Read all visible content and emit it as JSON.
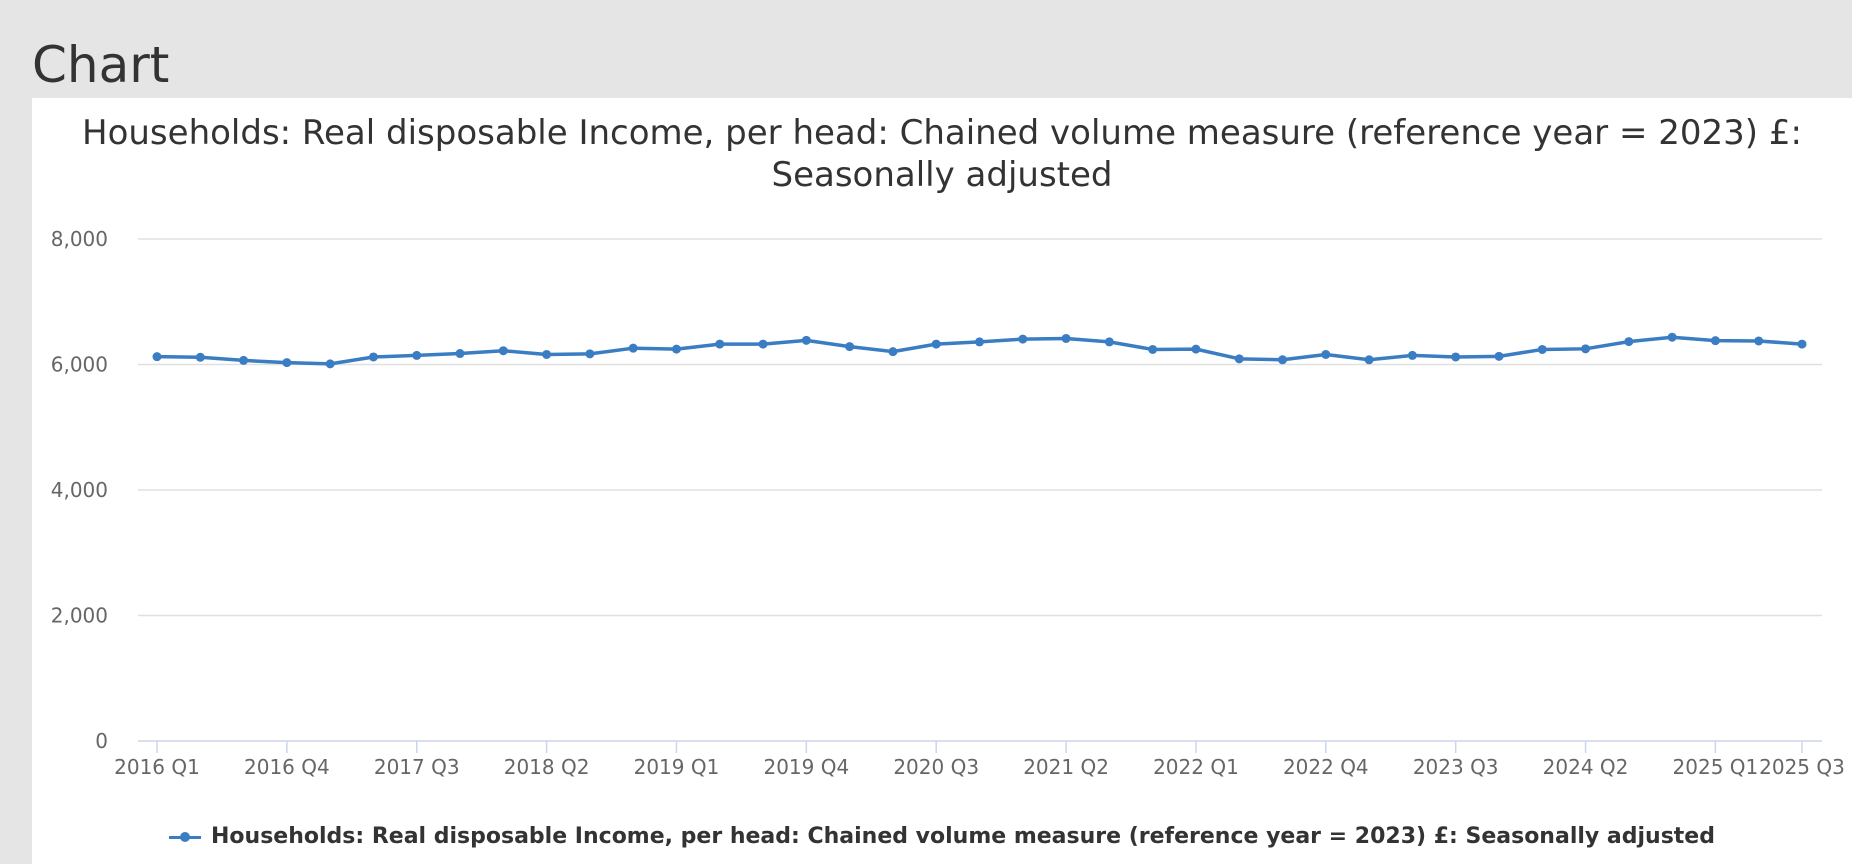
{
  "page": {
    "heading": "Chart"
  },
  "chart_data": {
    "type": "line",
    "title": "Households: Real disposable Income, per head: Chained volume measure (reference year = 2023) £: Seasonally adjusted",
    "xlabel": "",
    "ylabel": "",
    "ylim": [
      0,
      8000
    ],
    "yticks": [
      "0",
      "2,000",
      "4,000",
      "6,000",
      "8,000"
    ],
    "grid": true,
    "legend_position": "bottom",
    "x_tick_labels": [
      "2016 Q1",
      "2016 Q4",
      "2017 Q3",
      "2018 Q2",
      "2019 Q1",
      "2019 Q4",
      "2020 Q3",
      "2021 Q2",
      "2022 Q1",
      "2022 Q4",
      "2023 Q3",
      "2024 Q2",
      "2025 Q1",
      "2025 Q3"
    ],
    "categories": [
      "2016 Q1",
      "2016 Q2",
      "2016 Q3",
      "2016 Q4",
      "2017 Q1",
      "2017 Q2",
      "2017 Q3",
      "2017 Q4",
      "2018 Q1",
      "2018 Q2",
      "2018 Q3",
      "2018 Q4",
      "2019 Q1",
      "2019 Q2",
      "2019 Q3",
      "2019 Q4",
      "2020 Q1",
      "2020 Q2",
      "2020 Q3",
      "2020 Q4",
      "2021 Q1",
      "2021 Q2",
      "2021 Q3",
      "2021 Q4",
      "2022 Q1",
      "2022 Q2",
      "2022 Q3",
      "2022 Q4",
      "2023 Q1",
      "2023 Q2",
      "2023 Q3",
      "2023 Q4",
      "2024 Q1",
      "2024 Q2",
      "2024 Q3",
      "2024 Q4",
      "2025 Q1",
      "2025 Q2",
      "2025 Q3"
    ],
    "series": [
      {
        "name": "Households: Real disposable Income, per head: Chained volume measure (reference year = 2023) £: Seasonally adjusted",
        "color": "#3a7dc2",
        "values": [
          6125,
          6115,
          6065,
          6030,
          6010,
          6120,
          6145,
          6175,
          6220,
          6160,
          6170,
          6260,
          6245,
          6325,
          6325,
          6385,
          6285,
          6205,
          6325,
          6360,
          6405,
          6415,
          6360,
          6240,
          6245,
          6090,
          6075,
          6160,
          6075,
          6145,
          6120,
          6130,
          6240,
          6250,
          6365,
          6435,
          6380,
          6375,
          6325
        ]
      }
    ]
  }
}
